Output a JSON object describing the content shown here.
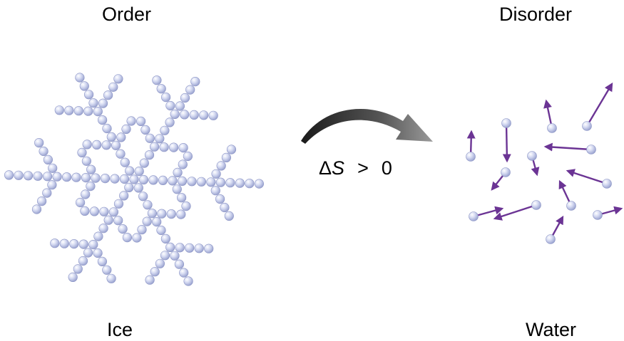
{
  "labels": {
    "order": "Order",
    "disorder": "Disorder",
    "ice": "Ice",
    "water": "Water"
  },
  "equation": {
    "delta": "Δ",
    "symbol": "S",
    "relation": ">",
    "value": "0"
  },
  "colors": {
    "molecule_fill": "#c4cbe8",
    "molecule_edge": "#8a93c4",
    "arrow_vector": "#6b3494",
    "process_arrow": "#555555"
  },
  "icons": {
    "molecule": "sphere",
    "process": "curved-arrow"
  }
}
